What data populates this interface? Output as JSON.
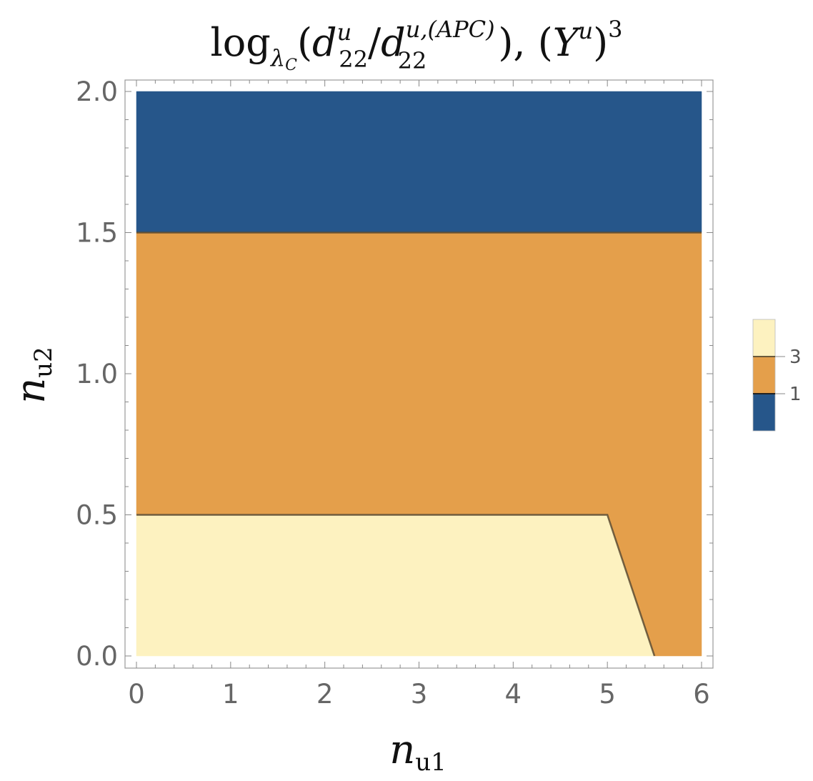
{
  "chart_data": {
    "type": "contour",
    "title": {
      "log": "log",
      "base": "λ",
      "base_sub": "C",
      "open": "(",
      "d1": "d",
      "d1_sup": "u",
      "d1_sub": "22",
      "slash": "/",
      "d2": "d",
      "d2_sup": "u,(APC)",
      "d2_sub": "22",
      "close": "), (",
      "Y": "Y",
      "Y_sup": "u",
      "close2": ")",
      "power": "3"
    },
    "xlabel": {
      "main": "n",
      "sub": "u1"
    },
    "ylabel": {
      "main": "n",
      "sub": "u2"
    },
    "xlim": [
      0,
      6
    ],
    "ylim": [
      0,
      2
    ],
    "xticks": [
      "0",
      "1",
      "2",
      "3",
      "4",
      "5",
      "6"
    ],
    "yticks": [
      "0.0",
      "0.5",
      "1.0",
      "1.5",
      "2.0"
    ],
    "regions": [
      {
        "name": "top",
        "color": "#26568a",
        "polygon": [
          [
            0,
            1.5
          ],
          [
            6,
            1.5
          ],
          [
            6,
            2
          ],
          [
            0,
            2
          ]
        ]
      },
      {
        "name": "middle",
        "color": "#e49f4b",
        "polygon": [
          [
            0,
            0.5
          ],
          [
            5,
            0.5
          ],
          [
            5.5,
            0
          ],
          [
            6,
            0
          ],
          [
            6,
            1.5
          ],
          [
            0,
            1.5
          ]
        ]
      },
      {
        "name": "bottom",
        "color": "#fdf2c0",
        "polygon": [
          [
            0,
            0
          ],
          [
            5.5,
            0
          ],
          [
            5,
            0.5
          ],
          [
            0,
            0.5
          ]
        ]
      }
    ],
    "contour_lines": [
      {
        "level": "1",
        "points": [
          [
            0,
            1.5
          ],
          [
            6,
            1.5
          ]
        ]
      },
      {
        "level": "3",
        "points": [
          [
            0,
            0.5
          ],
          [
            5,
            0.5
          ],
          [
            5.5,
            0
          ]
        ]
      }
    ],
    "legend": {
      "placement": "right",
      "colors": [
        "#fdf2c0",
        "#e49f4b",
        "#26568a"
      ],
      "labels": [
        "3",
        "1"
      ]
    }
  }
}
